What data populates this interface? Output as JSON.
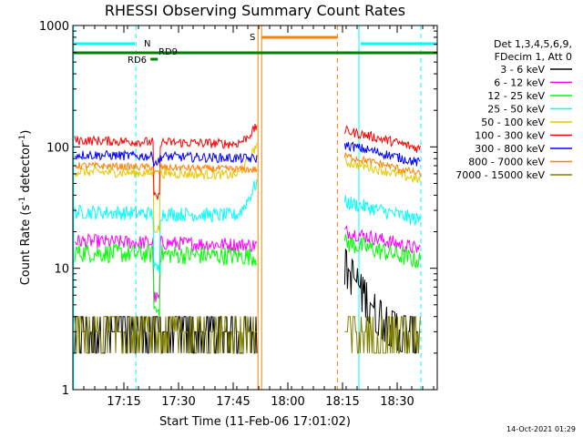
{
  "chart_data": {
    "type": "line",
    "title": "RHESSI Observing Summary Count Rates",
    "xlabel": "Start Time (11-Feb-06 17:01:02)",
    "ylabel_main": "Count Rate (s",
    "ylabel_sup1": "-1",
    "ylabel_mid": " detector",
    "ylabel_sup2": "-1",
    "ylabel_end": ")",
    "y_scale": "log",
    "ylim": [
      1,
      1000
    ],
    "xlim_minutes": [
      0,
      100
    ],
    "x_ticks": [
      {
        "minute": 14,
        "label": "17:15"
      },
      {
        "minute": 29,
        "label": "17:30"
      },
      {
        "minute": 44,
        "label": "17:45"
      },
      {
        "minute": 59,
        "label": "18:00"
      },
      {
        "minute": 74,
        "label": "18:15"
      },
      {
        "minute": 89,
        "label": "18:30"
      }
    ],
    "y_ticks": [
      {
        "value": 1,
        "label": "1"
      },
      {
        "value": 10,
        "label": "10"
      },
      {
        "value": 100,
        "label": "100"
      },
      {
        "value": 1000,
        "label": "1000"
      }
    ],
    "legend_header": [
      "Det 1,3,4,5,6,9,",
      "FDecim 1, Att 0"
    ],
    "legend_position": "right",
    "series": [
      {
        "name": "3 - 6 keV",
        "color": "#000000"
      },
      {
        "name": "6 - 12 keV",
        "color": "#ff00ff"
      },
      {
        "name": "12 - 25 keV",
        "color": "#00ff00"
      },
      {
        "name": "25 - 50 keV",
        "color": "#00ffff"
      },
      {
        "name": "50 - 100 keV",
        "color": "#e6c800"
      },
      {
        "name": "100 - 300 keV",
        "color": "#ff0000"
      },
      {
        "name": "300 - 800 keV",
        "color": "#0000ff"
      },
      {
        "name": "800 - 7000 keV",
        "color": "#ff8000"
      },
      {
        "name": "7000 - 15000 keV",
        "color": "#808000"
      }
    ],
    "annotations": [
      {
        "label": "N",
        "color": "#00ffff"
      },
      {
        "label": "S",
        "color": "#ff8000"
      },
      {
        "label": "RD9",
        "color": "#008000"
      },
      {
        "label": "RD6",
        "color": "#008000"
      }
    ],
    "timestamp": "14-Oct-2021 01:29"
  }
}
